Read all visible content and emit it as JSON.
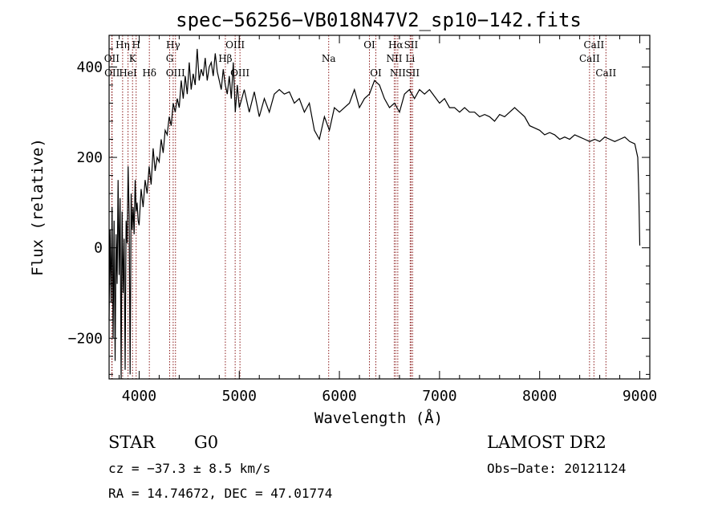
{
  "chart_data": {
    "type": "line",
    "title": "spec−56256−VB018N47V2_sp10−142.fits",
    "xlabel": "Wavelength (Å)",
    "ylabel": "Flux (relative)",
    "xlim": [
      3700,
      9100
    ],
    "ylim": [
      -290,
      470
    ],
    "x_ticks": [
      4000,
      5000,
      6000,
      7000,
      8000,
      9000
    ],
    "x_tick_labels": [
      "4000",
      "5000",
      "6000",
      "7000",
      "8000",
      "9000"
    ],
    "y_ticks": [
      -200,
      0,
      200,
      400
    ],
    "y_tick_labels": [
      "−200",
      "0",
      "200",
      "400"
    ],
    "grid": false,
    "series": [
      {
        "x": [
          3700,
          3710,
          3720,
          3730,
          3740,
          3750,
          3760,
          3770,
          3780,
          3790,
          3800,
          3810,
          3820,
          3830,
          3840,
          3850,
          3860,
          3870,
          3880,
          3890,
          3900,
          3910,
          3920,
          3930,
          3940,
          3950,
          3960,
          3970,
          3980,
          3990,
          4000,
          4020,
          4040,
          4060,
          4080,
          4100,
          4120,
          4140,
          4160,
          4180,
          4200,
          4220,
          4240,
          4260,
          4280,
          4300,
          4320,
          4340,
          4360,
          4380,
          4400,
          4420,
          4440,
          4460,
          4480,
          4500,
          4520,
          4540,
          4560,
          4580,
          4600,
          4620,
          4640,
          4660,
          4680,
          4700,
          4720,
          4740,
          4760,
          4780,
          4800,
          4820,
          4840,
          4860,
          4880,
          4900,
          4920,
          4940,
          4960,
          4980,
          5000,
          5050,
          5100,
          5150,
          5200,
          5250,
          5300,
          5350,
          5400,
          5450,
          5500,
          5550,
          5600,
          5650,
          5700,
          5750,
          5800,
          5850,
          5900,
          5950,
          6000,
          6050,
          6100,
          6150,
          6200,
          6250,
          6300,
          6350,
          6400,
          6450,
          6500,
          6550,
          6600,
          6650,
          6700,
          6750,
          6800,
          6850,
          6900,
          6950,
          7000,
          7050,
          7100,
          7150,
          7200,
          7250,
          7300,
          7350,
          7400,
          7450,
          7500,
          7550,
          7600,
          7650,
          7700,
          7750,
          7800,
          7850,
          7900,
          7950,
          8000,
          8050,
          8100,
          8150,
          8200,
          8250,
          8300,
          8350,
          8400,
          8450,
          8500,
          8550,
          8600,
          8650,
          8700,
          8750,
          8800,
          8850,
          8900,
          8950,
          8980,
          8990,
          9000,
          9000
        ],
        "y": [
          -160,
          40,
          -120,
          90,
          -200,
          60,
          -250,
          30,
          -80,
          150,
          -60,
          110,
          -290,
          80,
          -100,
          20,
          -270,
          60,
          10,
          180,
          70,
          -280,
          120,
          40,
          90,
          30,
          150,
          80,
          100,
          60,
          50,
          130,
          90,
          150,
          120,
          180,
          140,
          220,
          170,
          200,
          190,
          240,
          210,
          260,
          250,
          290,
          270,
          320,
          300,
          330,
          310,
          370,
          330,
          380,
          340,
          410,
          350,
          385,
          360,
          440,
          370,
          395,
          380,
          420,
          370,
          400,
          410,
          380,
          430,
          390,
          370,
          350,
          395,
          360,
          340,
          380,
          330,
          410,
          300,
          360,
          310,
          350,
          300,
          345,
          290,
          330,
          300,
          340,
          350,
          340,
          345,
          320,
          330,
          300,
          320,
          260,
          240,
          290,
          260,
          310,
          300,
          310,
          320,
          350,
          310,
          330,
          340,
          370,
          360,
          330,
          310,
          320,
          300,
          340,
          350,
          330,
          350,
          340,
          350,
          335,
          320,
          330,
          310,
          310,
          300,
          310,
          300,
          300,
          290,
          295,
          290,
          280,
          295,
          290,
          300,
          310,
          300,
          290,
          270,
          265,
          260,
          250,
          255,
          250,
          240,
          245,
          240,
          250,
          245,
          240,
          235,
          240,
          235,
          245,
          240,
          235,
          240,
          245,
          235,
          230,
          200,
          120,
          5,
          5
        ]
      }
    ],
    "spectral_lines": [
      {
        "wl": 3727,
        "label": "OII",
        "row": 1
      },
      {
        "wl": 3730,
        "label": "OII",
        "row": 2
      },
      {
        "wl": 3835,
        "label": "Hη",
        "row": 0
      },
      {
        "wl": 3889,
        "label": "HeI",
        "row": 2
      },
      {
        "wl": 3934,
        "label": "K",
        "row": 1
      },
      {
        "wl": 3970,
        "label": "H",
        "row": 0
      },
      {
        "wl": 4102,
        "label": "Hδ",
        "row": 2
      },
      {
        "wl": 4305,
        "label": "G",
        "row": 1
      },
      {
        "wl": 4340,
        "label": "Hγ",
        "row": 0
      },
      {
        "wl": 4363,
        "label": "OIII",
        "row": 2
      },
      {
        "wl": 4861,
        "label": "Hβ",
        "row": 1
      },
      {
        "wl": 4959,
        "label": "OIII",
        "row": 0
      },
      {
        "wl": 5007,
        "label": "OIII",
        "row": 2
      },
      {
        "wl": 5893,
        "label": "Na",
        "row": 1
      },
      {
        "wl": 6300,
        "label": "OI",
        "row": 0
      },
      {
        "wl": 6364,
        "label": "OI",
        "row": 2
      },
      {
        "wl": 6548,
        "label": "NII",
        "row": 1
      },
      {
        "wl": 6563,
        "label": "Hα",
        "row": 0
      },
      {
        "wl": 6583,
        "label": "NII",
        "row": 2
      },
      {
        "wl": 6707,
        "label": "Li",
        "row": 1
      },
      {
        "wl": 6716,
        "label": "SII",
        "row": 0
      },
      {
        "wl": 6731,
        "label": "SII",
        "row": 2
      },
      {
        "wl": 8498,
        "label": "CaII",
        "row": 1
      },
      {
        "wl": 8542,
        "label": "CaII",
        "row": 0
      },
      {
        "wl": 8662,
        "label": "CaII",
        "row": 2
      }
    ]
  },
  "info": {
    "object_class": "STAR",
    "subclass": "G0",
    "survey": "LAMOST DR2",
    "velocity": "cz = −37.3 ± 8.5 km/s",
    "obs_date": "Obs−Date: 20121124",
    "coords": "RA =  14.74672, DEC =  47.01774"
  },
  "colors": {
    "line": "#000000",
    "marker_line": "#8b1a1a"
  }
}
